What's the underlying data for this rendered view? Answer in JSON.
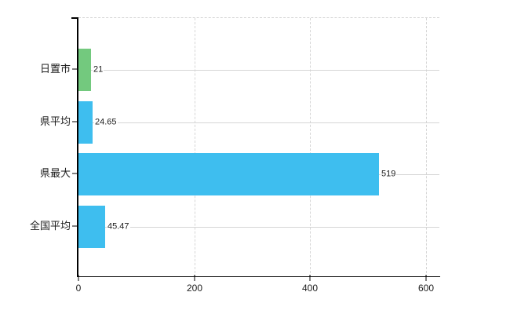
{
  "chart_data": {
    "type": "bar",
    "orientation": "horizontal",
    "title": "",
    "xlabel": "",
    "ylabel": "",
    "categories": [
      "日置市",
      "県平均",
      "県最大",
      "全国平均"
    ],
    "values": [
      21,
      24.65,
      519,
      45.47
    ],
    "value_labels": [
      "21",
      "24.65",
      "519",
      "45.47"
    ],
    "bar_colors": [
      "#73c97e",
      "#3ebeef",
      "#3ebeef",
      "#3ebeef"
    ],
    "x_ticks": [
      0,
      200,
      400,
      600
    ],
    "x_tick_labels": [
      "0",
      "200",
      "400",
      "600"
    ],
    "xlim": [
      0,
      623
    ],
    "grid": true,
    "legend_position": "none"
  },
  "colors": {
    "bar_green": "#73c97e",
    "bar_blue": "#3ebeef",
    "gridline": "#d5d5d5",
    "axis": "#000000",
    "text": "#1c1c1c",
    "background": "#ffffff"
  }
}
